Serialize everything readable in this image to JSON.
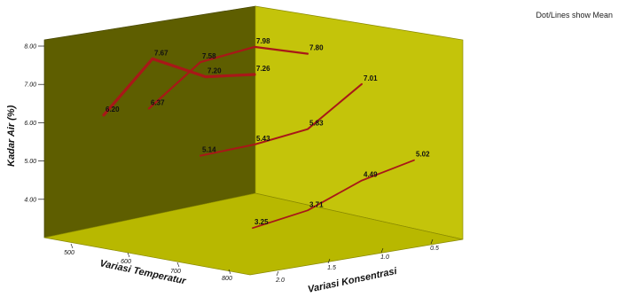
{
  "note": "Dot/Lines show Mean",
  "chart_data": {
    "type": "line",
    "projection": "3d",
    "ylabel": "Kadar Air (%)",
    "xlabel": "Variasi Temperatur",
    "zlabel": "Variasi Konsentrasi",
    "ylim": [
      3.0,
      8.0
    ],
    "y_ticks": [
      "8.00",
      "7.00",
      "6.00",
      "5.00",
      "4.00"
    ],
    "x_ticks": [
      "500",
      "600",
      "700",
      "800"
    ],
    "z_ticks": [
      "2.0",
      "1.5",
      "1.0",
      "0.5"
    ],
    "series": [
      {
        "x": [
          "500",
          "600",
          "700",
          "800"
        ],
        "values": [
          6.2,
          7.67,
          7.2,
          7.26
        ],
        "labels": [
          "6.20",
          "7.67",
          "7.20",
          "7.26"
        ]
      },
      {
        "x": [
          "600",
          "700",
          "800",
          "900"
        ],
        "values": [
          6.37,
          7.58,
          7.98,
          7.8
        ],
        "labels": [
          "6.37",
          "7.58",
          "7.98",
          "7.80"
        ]
      },
      {
        "x": [
          "700",
          "800",
          "900",
          "1000"
        ],
        "values": [
          5.14,
          5.43,
          5.83,
          7.01
        ],
        "labels": [
          "5.14",
          "5.43",
          "5.83",
          "7.01"
        ]
      },
      {
        "x": [
          "800",
          "900",
          "1000",
          "1100"
        ],
        "values": [
          3.25,
          3.71,
          4.49,
          5.02
        ],
        "labels": [
          "3.25",
          "3.71",
          "4.49",
          "5.02"
        ]
      }
    ],
    "colors": {
      "back_wall": "#5e5e00",
      "right_wall": "#c4c40a",
      "floor": "#b8b800",
      "line": "#a81818"
    }
  }
}
